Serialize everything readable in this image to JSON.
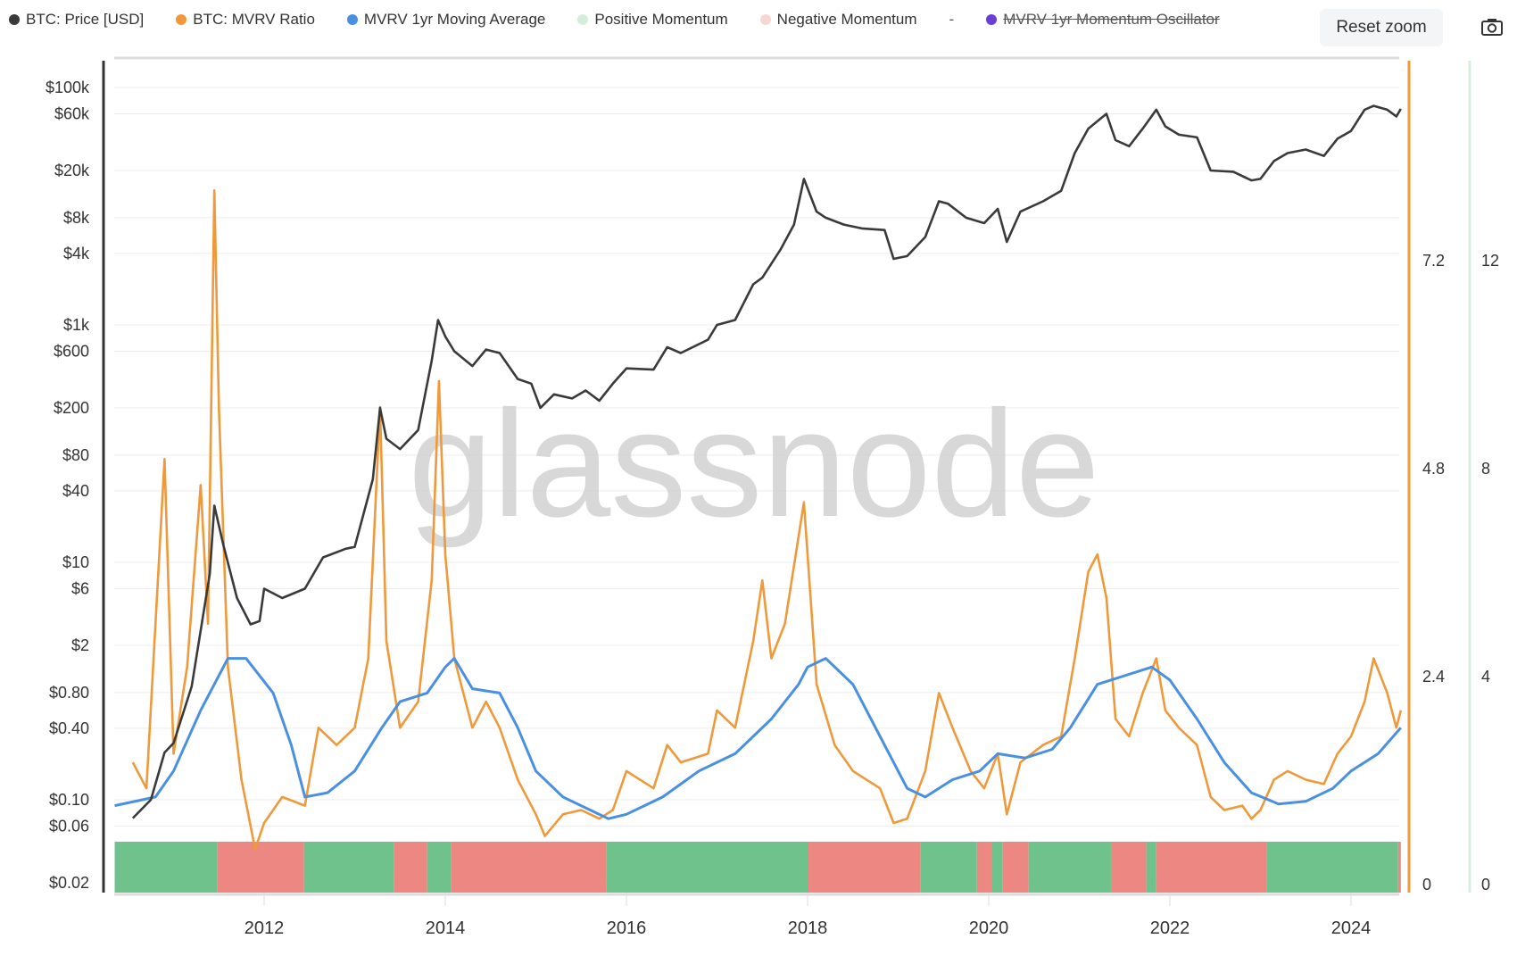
{
  "legend": [
    {
      "label": "BTC: Price [USD]",
      "color": "#3a3a3a",
      "hidden": false
    },
    {
      "label": "BTC: MVRV Ratio",
      "color": "#f0993a",
      "hidden": false
    },
    {
      "label": "MVRV 1yr Moving Average",
      "color": "#4a90e2",
      "hidden": false
    },
    {
      "label": "Positive Momentum",
      "color": "#d3eedd",
      "hidden": false
    },
    {
      "label": "Negative Momentum",
      "color": "#f7d6d4",
      "hidden": false
    },
    {
      "label": "MVRV 1yr Momentum Oscillator",
      "color": "#6a3fd8",
      "hidden": true
    }
  ],
  "legend_separator": "-",
  "toolbar": {
    "reset_zoom": "Reset zoom",
    "camera_icon": "camera-icon"
  },
  "watermark": "glassnode",
  "chart_data": {
    "type": "line",
    "xaxis": {
      "ticks": [
        "2012",
        "2014",
        "2016",
        "2018",
        "2020",
        "2022",
        "2024"
      ],
      "range": [
        2010.35,
        2024.55
      ]
    },
    "yaxis_left": {
      "scale": "log",
      "ticks": [
        "$100k",
        "$60k",
        "$20k",
        "$8k",
        "$4k",
        "$1k",
        "$600",
        "$200",
        "$80",
        "$40",
        "$10",
        "$6",
        "$2",
        "$0.80",
        "$0.40",
        "$0.10",
        "$0.06",
        "$0.02"
      ],
      "tick_values": [
        100000,
        60000,
        20000,
        8000,
        4000,
        1000,
        600,
        200,
        80,
        40,
        10,
        6,
        2,
        0.8,
        0.4,
        0.1,
        0.06,
        0.02
      ],
      "range": [
        0.02,
        100000
      ]
    },
    "yaxis_right_mvrv": {
      "ticks": [
        "0",
        "2.4",
        "4.8",
        "7.2"
      ],
      "range": [
        0,
        9.5
      ]
    },
    "yaxis_right_oscillator": {
      "ticks": [
        "0",
        "4",
        "8",
        "12"
      ]
    },
    "grid": true,
    "legend_placement": "top",
    "series": [
      {
        "name": "BTC: Price [USD]",
        "color": "#3a3a3a",
        "axis": "left",
        "points": [
          [
            2010.55,
            0.07
          ],
          [
            2010.75,
            0.1
          ],
          [
            2010.9,
            0.25
          ],
          [
            2011.0,
            0.3
          ],
          [
            2011.2,
            0.9
          ],
          [
            2011.4,
            8
          ],
          [
            2011.45,
            30
          ],
          [
            2011.55,
            14
          ],
          [
            2011.7,
            5
          ],
          [
            2011.85,
            3
          ],
          [
            2011.95,
            3.2
          ],
          [
            2012.0,
            6
          ],
          [
            2012.2,
            5
          ],
          [
            2012.45,
            6
          ],
          [
            2012.65,
            11
          ],
          [
            2012.9,
            13
          ],
          [
            2013.0,
            13.5
          ],
          [
            2013.2,
            50
          ],
          [
            2013.28,
            200
          ],
          [
            2013.35,
            110
          ],
          [
            2013.5,
            90
          ],
          [
            2013.7,
            130
          ],
          [
            2013.85,
            500
          ],
          [
            2013.92,
            1100
          ],
          [
            2014.0,
            800
          ],
          [
            2014.1,
            600
          ],
          [
            2014.3,
            450
          ],
          [
            2014.45,
            620
          ],
          [
            2014.6,
            580
          ],
          [
            2014.8,
            350
          ],
          [
            2014.95,
            320
          ],
          [
            2015.05,
            200
          ],
          [
            2015.2,
            260
          ],
          [
            2015.4,
            240
          ],
          [
            2015.55,
            280
          ],
          [
            2015.7,
            230
          ],
          [
            2015.85,
            320
          ],
          [
            2016.0,
            430
          ],
          [
            2016.3,
            420
          ],
          [
            2016.45,
            650
          ],
          [
            2016.6,
            580
          ],
          [
            2016.9,
            750
          ],
          [
            2017.0,
            1000
          ],
          [
            2017.2,
            1100
          ],
          [
            2017.4,
            2200
          ],
          [
            2017.5,
            2500
          ],
          [
            2017.7,
            4300
          ],
          [
            2017.85,
            7000
          ],
          [
            2017.96,
            17000
          ],
          [
            2018.1,
            9000
          ],
          [
            2018.2,
            8000
          ],
          [
            2018.4,
            7000
          ],
          [
            2018.6,
            6500
          ],
          [
            2018.85,
            6300
          ],
          [
            2018.95,
            3600
          ],
          [
            2019.1,
            3800
          ],
          [
            2019.3,
            5500
          ],
          [
            2019.45,
            11000
          ],
          [
            2019.55,
            10500
          ],
          [
            2019.75,
            8000
          ],
          [
            2019.95,
            7200
          ],
          [
            2020.1,
            9500
          ],
          [
            2020.2,
            5000
          ],
          [
            2020.35,
            9000
          ],
          [
            2020.6,
            11000
          ],
          [
            2020.8,
            13500
          ],
          [
            2020.95,
            28000
          ],
          [
            2021.1,
            45000
          ],
          [
            2021.3,
            60000
          ],
          [
            2021.4,
            36000
          ],
          [
            2021.55,
            32000
          ],
          [
            2021.7,
            45000
          ],
          [
            2021.85,
            65000
          ],
          [
            2021.95,
            47000
          ],
          [
            2022.1,
            40000
          ],
          [
            2022.3,
            38000
          ],
          [
            2022.45,
            20000
          ],
          [
            2022.7,
            19500
          ],
          [
            2022.9,
            16500
          ],
          [
            2023.0,
            17000
          ],
          [
            2023.15,
            24000
          ],
          [
            2023.3,
            28000
          ],
          [
            2023.5,
            30000
          ],
          [
            2023.7,
            26500
          ],
          [
            2023.85,
            37000
          ],
          [
            2024.0,
            43000
          ],
          [
            2024.15,
            65000
          ],
          [
            2024.25,
            70000
          ],
          [
            2024.4,
            65000
          ],
          [
            2024.5,
            57000
          ],
          [
            2024.55,
            66000
          ]
        ]
      },
      {
        "name": "BTC: MVRV Ratio",
        "color": "#f0993a",
        "axis": "right",
        "points": [
          [
            2010.55,
            1.4
          ],
          [
            2010.7,
            1.1
          ],
          [
            2010.9,
            4.9
          ],
          [
            2011.0,
            1.5
          ],
          [
            2011.15,
            2.5
          ],
          [
            2011.3,
            4.6
          ],
          [
            2011.38,
            3.0
          ],
          [
            2011.45,
            8.0
          ],
          [
            2011.5,
            5.5
          ],
          [
            2011.6,
            2.5
          ],
          [
            2011.75,
            1.2
          ],
          [
            2011.9,
            0.4
          ],
          [
            2012.0,
            0.7
          ],
          [
            2012.2,
            1.0
          ],
          [
            2012.45,
            0.9
          ],
          [
            2012.6,
            1.8
          ],
          [
            2012.8,
            1.6
          ],
          [
            2013.0,
            1.8
          ],
          [
            2013.15,
            2.6
          ],
          [
            2013.28,
            5.5
          ],
          [
            2013.35,
            2.8
          ],
          [
            2013.5,
            1.8
          ],
          [
            2013.7,
            2.1
          ],
          [
            2013.85,
            3.5
          ],
          [
            2013.93,
            5.8
          ],
          [
            2014.0,
            3.8
          ],
          [
            2014.1,
            2.6
          ],
          [
            2014.3,
            1.8
          ],
          [
            2014.45,
            2.1
          ],
          [
            2014.6,
            1.8
          ],
          [
            2014.8,
            1.2
          ],
          [
            2015.0,
            0.8
          ],
          [
            2015.1,
            0.55
          ],
          [
            2015.3,
            0.8
          ],
          [
            2015.5,
            0.85
          ],
          [
            2015.7,
            0.75
          ],
          [
            2015.85,
            0.85
          ],
          [
            2016.0,
            1.3
          ],
          [
            2016.3,
            1.1
          ],
          [
            2016.45,
            1.6
          ],
          [
            2016.6,
            1.4
          ],
          [
            2016.9,
            1.5
          ],
          [
            2017.0,
            2.0
          ],
          [
            2017.2,
            1.8
          ],
          [
            2017.4,
            2.8
          ],
          [
            2017.5,
            3.5
          ],
          [
            2017.6,
            2.6
          ],
          [
            2017.75,
            3.0
          ],
          [
            2017.96,
            4.4
          ],
          [
            2018.1,
            2.3
          ],
          [
            2018.3,
            1.6
          ],
          [
            2018.5,
            1.3
          ],
          [
            2018.8,
            1.1
          ],
          [
            2018.95,
            0.7
          ],
          [
            2019.1,
            0.75
          ],
          [
            2019.3,
            1.3
          ],
          [
            2019.45,
            2.2
          ],
          [
            2019.6,
            1.8
          ],
          [
            2019.8,
            1.3
          ],
          [
            2019.95,
            1.1
          ],
          [
            2020.1,
            1.5
          ],
          [
            2020.2,
            0.8
          ],
          [
            2020.35,
            1.4
          ],
          [
            2020.6,
            1.6
          ],
          [
            2020.8,
            1.7
          ],
          [
            2020.95,
            2.6
          ],
          [
            2021.1,
            3.6
          ],
          [
            2021.2,
            3.8
          ],
          [
            2021.3,
            3.3
          ],
          [
            2021.4,
            1.9
          ],
          [
            2021.55,
            1.7
          ],
          [
            2021.7,
            2.2
          ],
          [
            2021.85,
            2.6
          ],
          [
            2021.95,
            2.0
          ],
          [
            2022.1,
            1.8
          ],
          [
            2022.3,
            1.6
          ],
          [
            2022.45,
            1.0
          ],
          [
            2022.6,
            0.85
          ],
          [
            2022.8,
            0.9
          ],
          [
            2022.9,
            0.75
          ],
          [
            2023.0,
            0.85
          ],
          [
            2023.15,
            1.2
          ],
          [
            2023.3,
            1.3
          ],
          [
            2023.5,
            1.2
          ],
          [
            2023.7,
            1.15
          ],
          [
            2023.85,
            1.5
          ],
          [
            2024.0,
            1.7
          ],
          [
            2024.15,
            2.1
          ],
          [
            2024.25,
            2.6
          ],
          [
            2024.4,
            2.2
          ],
          [
            2024.5,
            1.8
          ],
          [
            2024.55,
            2.0
          ]
        ]
      },
      {
        "name": "MVRV 1yr Moving Average",
        "color": "#4a90e2",
        "axis": "right",
        "points": [
          [
            2010.35,
            0.9
          ],
          [
            2010.8,
            1.0
          ],
          [
            2011.0,
            1.3
          ],
          [
            2011.3,
            2.0
          ],
          [
            2011.6,
            2.6
          ],
          [
            2011.8,
            2.6
          ],
          [
            2012.1,
            2.2
          ],
          [
            2012.3,
            1.6
          ],
          [
            2012.45,
            1.0
          ],
          [
            2012.7,
            1.05
          ],
          [
            2013.0,
            1.3
          ],
          [
            2013.3,
            1.8
          ],
          [
            2013.5,
            2.1
          ],
          [
            2013.8,
            2.2
          ],
          [
            2014.0,
            2.5
          ],
          [
            2014.1,
            2.6
          ],
          [
            2014.3,
            2.25
          ],
          [
            2014.6,
            2.2
          ],
          [
            2014.8,
            1.8
          ],
          [
            2015.0,
            1.3
          ],
          [
            2015.3,
            1.0
          ],
          [
            2015.6,
            0.85
          ],
          [
            2015.8,
            0.75
          ],
          [
            2016.0,
            0.8
          ],
          [
            2016.4,
            1.0
          ],
          [
            2016.8,
            1.3
          ],
          [
            2017.2,
            1.5
          ],
          [
            2017.6,
            1.9
          ],
          [
            2017.9,
            2.3
          ],
          [
            2018.0,
            2.5
          ],
          [
            2018.2,
            2.6
          ],
          [
            2018.5,
            2.3
          ],
          [
            2018.8,
            1.7
          ],
          [
            2019.1,
            1.1
          ],
          [
            2019.3,
            1.0
          ],
          [
            2019.6,
            1.2
          ],
          [
            2019.9,
            1.3
          ],
          [
            2020.1,
            1.5
          ],
          [
            2020.4,
            1.45
          ],
          [
            2020.7,
            1.55
          ],
          [
            2020.9,
            1.8
          ],
          [
            2021.2,
            2.3
          ],
          [
            2021.5,
            2.4
          ],
          [
            2021.8,
            2.5
          ],
          [
            2022.0,
            2.35
          ],
          [
            2022.3,
            1.9
          ],
          [
            2022.6,
            1.4
          ],
          [
            2022.9,
            1.05
          ],
          [
            2023.2,
            0.92
          ],
          [
            2023.5,
            0.95
          ],
          [
            2023.8,
            1.1
          ],
          [
            2024.0,
            1.3
          ],
          [
            2024.3,
            1.5
          ],
          [
            2024.55,
            1.8
          ]
        ]
      }
    ],
    "momentum_bands": [
      {
        "from": 2010.35,
        "to": 2011.48,
        "state": "positive"
      },
      {
        "from": 2011.48,
        "to": 2012.44,
        "state": "negative"
      },
      {
        "from": 2012.44,
        "to": 2013.43,
        "state": "positive"
      },
      {
        "from": 2013.43,
        "to": 2013.8,
        "state": "negative"
      },
      {
        "from": 2013.8,
        "to": 2014.06,
        "state": "positive"
      },
      {
        "from": 2014.06,
        "to": 2015.78,
        "state": "negative"
      },
      {
        "from": 2015.78,
        "to": 2018.0,
        "state": "positive"
      },
      {
        "from": 2018.0,
        "to": 2019.25,
        "state": "negative"
      },
      {
        "from": 2019.25,
        "to": 2019.87,
        "state": "positive"
      },
      {
        "from": 2019.87,
        "to": 2020.03,
        "state": "negative"
      },
      {
        "from": 2020.03,
        "to": 2020.15,
        "state": "positive"
      },
      {
        "from": 2020.15,
        "to": 2020.44,
        "state": "negative"
      },
      {
        "from": 2020.44,
        "to": 2021.35,
        "state": "positive"
      },
      {
        "from": 2021.35,
        "to": 2021.74,
        "state": "negative"
      },
      {
        "from": 2021.74,
        "to": 2021.85,
        "state": "positive"
      },
      {
        "from": 2021.85,
        "to": 2023.07,
        "state": "negative"
      },
      {
        "from": 2023.07,
        "to": 2024.52,
        "state": "positive"
      },
      {
        "from": 2024.52,
        "to": 2024.55,
        "state": "negative"
      }
    ],
    "band_colors": {
      "positive": "#6fc28c",
      "negative": "#ec8781"
    }
  }
}
